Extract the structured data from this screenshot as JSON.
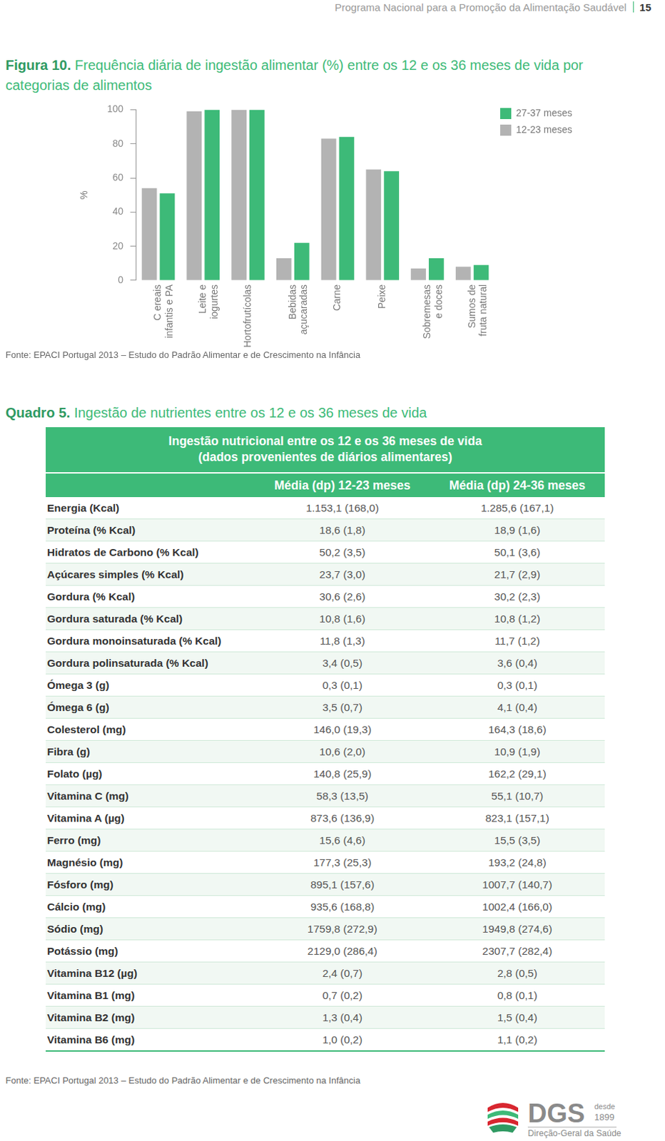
{
  "header": {
    "text": "Programa Nacional para a Promoção da Alimentação Saudável",
    "page": "15"
  },
  "chart_data": {
    "type": "bar",
    "label": "Figura 10.",
    "title": "Frequência diária de ingestão alimentar (%) entre os 12 e os 36 meses de vida por categorias de alimentos",
    "y_label": "%",
    "categories": [
      [
        "C ereais",
        "infantis e PA"
      ],
      [
        "Leite e",
        "iogurtes"
      ],
      [
        "Hortofrutícolas"
      ],
      [
        "Bebidas",
        "açucaradas"
      ],
      [
        "Carne"
      ],
      [
        "Peixe"
      ],
      [
        "Sobremesas",
        "e doces"
      ],
      [
        "Sumos de",
        "fruta natural"
      ]
    ],
    "series": [
      {
        "name": "12-23 meses",
        "color": "#b3b3b3",
        "values": [
          54,
          99,
          100,
          13,
          83,
          65,
          7,
          8
        ]
      },
      {
        "name": "27-37 meses",
        "color": "#3dba78",
        "values": [
          51,
          100,
          100,
          22,
          84,
          64,
          13,
          9
        ]
      }
    ],
    "ylim": [
      0,
      100
    ],
    "yticks": [
      0,
      20,
      40,
      60,
      80,
      100
    ],
    "grid": false,
    "legend": "right",
    "source": "Fonte: EPACI Portugal 2013 – Estudo do Padrão Alimentar e de Crescimento na Infância"
  },
  "table_block": {
    "label": "Quadro 5.",
    "caption": "Ingestão de nutrientes entre os 12 e os 36 meses de vida",
    "title": [
      "Ingestão nutricional entre os 12 e os 36 meses de vida",
      "(dados provenientes de diários alimentares)"
    ],
    "columns": [
      "",
      "Média (dp) 12-23 meses",
      "Média (dp) 24-36 meses"
    ],
    "rows": [
      [
        "Energia (Kcal)",
        "1.153,1 (168,0)",
        "1.285,6 (167,1)"
      ],
      [
        "Proteína (% Kcal)",
        "18,6 (1,8)",
        "18,9 (1,6)"
      ],
      [
        "Hidratos de Carbono (% Kcal)",
        "50,2 (3,5)",
        "50,1 (3,6)"
      ],
      [
        "Açúcares simples (% Kcal)",
        "23,7 (3,0)",
        "21,7 (2,9)"
      ],
      [
        "Gordura (% Kcal)",
        "30,6 (2,6)",
        "30,2 (2,3)"
      ],
      [
        "Gordura saturada (% Kcal)",
        "10,8 (1,6)",
        "10,8 (1,2)"
      ],
      [
        "Gordura monoinsaturada (% Kcal)",
        "11,8 (1,3)",
        "11,7 (1,2)"
      ],
      [
        "Gordura polinsaturada (% Kcal)",
        "3,4 (0,5)",
        "3,6 (0,4)"
      ],
      [
        "Ómega 3 (g)",
        "0,3 (0,1)",
        "0,3 (0,1)"
      ],
      [
        "Ómega 6 (g)",
        "3,5 (0,7)",
        "4,1 (0,4)"
      ],
      [
        "Colesterol (mg)",
        "146,0 (19,3)",
        "164,3 (18,6)"
      ],
      [
        "Fibra (g)",
        "10,6 (2,0)",
        "10,9 (1,9)"
      ],
      [
        "Folato (µg)",
        "140,8 (25,9)",
        "162,2 (29,1)"
      ],
      [
        "Vitamina C (mg)",
        "58,3 (13,5)",
        "55,1 (10,7)"
      ],
      [
        "Vitamina A (µg)",
        "873,6 (136,9)",
        "823,1 (157,1)"
      ],
      [
        "Ferro (mg)",
        "15,6 (4,6)",
        "15,5 (3,5)"
      ],
      [
        "Magnésio (mg)",
        "177,3 (25,3)",
        "193,2 (24,8)"
      ],
      [
        "Fósforo (mg)",
        "895,1 (157,6)",
        "1007,7 (140,7)"
      ],
      [
        "Cálcio (mg)",
        "935,6 (168,8)",
        "1002,4 (166,0)"
      ],
      [
        "Sódio (mg)",
        "1759,8 (272,9)",
        "1949,8 (274,6)"
      ],
      [
        "Potássio (mg)",
        "2129,0 (286,4)",
        "2307,7 (282,4)"
      ],
      [
        "Vitamina B12 (µg)",
        "2,4 (0,7)",
        "2,8 (0,5)"
      ],
      [
        "Vitamina B1 (mg)",
        "0,7 (0,2)",
        "0,8 (0,1)"
      ],
      [
        "Vitamina B2 (mg)",
        "1,3 (0,4)",
        "1,5 (0,4)"
      ],
      [
        "Vitamina B6 (mg)",
        "1,0 (0,2)",
        "1,1 (0,2)"
      ]
    ],
    "source": "Fonte: EPACI Portugal 2013 – Estudo do Padrão Alimentar e de Crescimento na Infância"
  },
  "footer": {
    "logo": "DGS",
    "since": "desde",
    "year": "1899",
    "org": "Direção-Geral da Saúde"
  }
}
